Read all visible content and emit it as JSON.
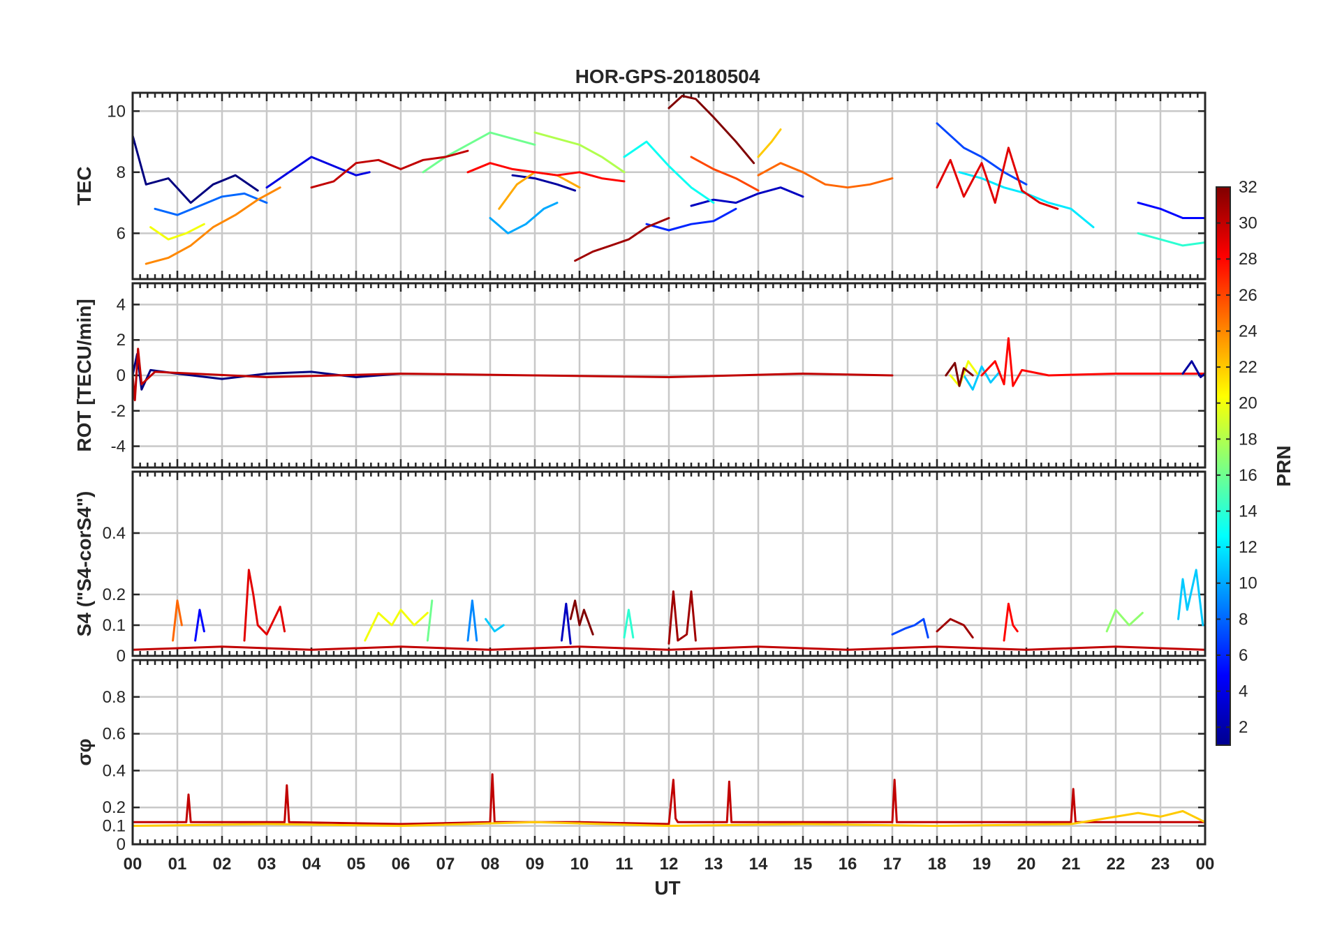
{
  "chart_data": {
    "type": "line",
    "title": "HOR-GPS-20180504",
    "xlabel": "UT",
    "x_tick_labels": [
      "00",
      "01",
      "02",
      "03",
      "04",
      "05",
      "06",
      "07",
      "08",
      "09",
      "10",
      "11",
      "12",
      "13",
      "14",
      "15",
      "16",
      "17",
      "18",
      "19",
      "20",
      "21",
      "22",
      "23",
      "00"
    ],
    "xlim": [
      0,
      24
    ],
    "colorbar": {
      "label": "PRN",
      "range": [
        1,
        32
      ],
      "tick_labels": [
        "2",
        "4",
        "6",
        "8",
        "10",
        "12",
        "14",
        "16",
        "18",
        "20",
        "22",
        "24",
        "26",
        "28",
        "30",
        "32"
      ],
      "colormap": "jet"
    },
    "panels": [
      {
        "id": "tec",
        "ylabel": "TEC",
        "ylim": [
          4.5,
          10.6
        ],
        "y_ticks": [
          6,
          8,
          10
        ],
        "y_tick_labels": [
          "6",
          "8",
          "10"
        ],
        "series": [
          {
            "prn": 1,
            "x": [
              0,
              0.3,
              0.8,
              1.3,
              1.8,
              2.3,
              2.8
            ],
            "y": [
              9.2,
              7.6,
              7.8,
              7.0,
              7.6,
              7.9,
              7.4
            ]
          },
          {
            "prn": 2,
            "x": [
              8.5,
              9.0,
              9.5,
              9.9
            ],
            "y": [
              7.9,
              7.8,
              7.6,
              7.4
            ]
          },
          {
            "prn": 3,
            "x": [
              12.5,
              13.0,
              13.5,
              14.0,
              14.5,
              15.0
            ],
            "y": [
              6.9,
              7.1,
              7.0,
              7.3,
              7.5,
              7.2
            ]
          },
          {
            "prn": 4,
            "x": [
              3.0,
              3.5,
              4.0,
              4.5,
              5.0,
              5.3
            ],
            "y": [
              7.5,
              8.0,
              8.5,
              8.2,
              7.9,
              8.0
            ]
          },
          {
            "prn": 5,
            "x": [
              22.5,
              23.0,
              23.5,
              24.0
            ],
            "y": [
              7.0,
              6.8,
              6.5,
              6.5
            ]
          },
          {
            "prn": 6,
            "x": [
              11.5,
              12.0,
              12.5,
              13.0,
              13.5
            ],
            "y": [
              6.3,
              6.1,
              6.3,
              6.4,
              6.8
            ]
          },
          {
            "prn": 7,
            "x": [
              18.0,
              18.3,
              18.6,
              19.0,
              19.5,
              20.0
            ],
            "y": [
              9.6,
              9.2,
              8.8,
              8.5,
              8.0,
              7.6
            ]
          },
          {
            "prn": 8,
            "x": [
              0.5,
              1.0,
              1.5,
              2.0,
              2.5,
              3.0
            ],
            "y": [
              6.8,
              6.6,
              6.9,
              7.2,
              7.3,
              7.0
            ]
          },
          {
            "prn": 10,
            "x": [
              8.0,
              8.4,
              8.8,
              9.2,
              9.5
            ],
            "y": [
              6.5,
              6.0,
              6.3,
              6.8,
              7.0
            ]
          },
          {
            "prn": 12,
            "x": [
              18.5,
              19.0,
              19.5,
              20.0,
              20.5,
              21.0,
              21.5
            ],
            "y": [
              8.0,
              7.8,
              7.5,
              7.3,
              7.0,
              6.8,
              6.2
            ]
          },
          {
            "prn": 13,
            "x": [
              11.0,
              11.5,
              12.0,
              12.5,
              13.0
            ],
            "y": [
              8.5,
              9.0,
              8.2,
              7.5,
              7.0
            ]
          },
          {
            "prn": 14,
            "x": [
              22.5,
              23.0,
              23.5,
              24.0
            ],
            "y": [
              6.0,
              5.8,
              5.6,
              5.7
            ]
          },
          {
            "prn": 16,
            "x": [
              6.5,
              7.0,
              7.5,
              8.0,
              8.5,
              9.0
            ],
            "y": [
              8.0,
              8.5,
              8.9,
              9.3,
              9.1,
              8.9
            ]
          },
          {
            "prn": 18,
            "x": [
              9.0,
              9.5,
              10.0,
              10.5,
              11.0
            ],
            "y": [
              9.3,
              9.1,
              8.9,
              8.5,
              8.0
            ]
          },
          {
            "prn": 20,
            "x": [
              0.4,
              0.8,
              1.2,
              1.6
            ],
            "y": [
              6.2,
              5.8,
              6.0,
              6.3
            ]
          },
          {
            "prn": 22,
            "x": [
              14.0,
              14.3,
              14.5
            ],
            "y": [
              8.5,
              9.0,
              9.4
            ]
          },
          {
            "prn": 23,
            "x": [
              8.2,
              8.6,
              9.0,
              9.5,
              10.0
            ],
            "y": [
              6.8,
              7.6,
              8.0,
              7.9,
              7.5
            ]
          },
          {
            "prn": 24,
            "x": [
              0.3,
              0.8,
              1.3,
              1.8,
              2.3,
              2.8,
              3.3
            ],
            "y": [
              5.0,
              5.2,
              5.6,
              6.2,
              6.6,
              7.1,
              7.5
            ]
          },
          {
            "prn": 25,
            "x": [
              14.0,
              14.5,
              15.0,
              15.5,
              16.0,
              16.5,
              17.0
            ],
            "y": [
              7.9,
              8.3,
              8.0,
              7.6,
              7.5,
              7.6,
              7.8
            ]
          },
          {
            "prn": 26,
            "x": [
              12.5,
              13.0,
              13.5,
              14.0
            ],
            "y": [
              8.5,
              8.1,
              7.8,
              7.4
            ]
          },
          {
            "prn": 28,
            "x": [
              7.5,
              8.0,
              8.5,
              9.0,
              9.5,
              10.0,
              10.5,
              11.0
            ],
            "y": [
              8.0,
              8.3,
              8.1,
              8.0,
              7.9,
              8.0,
              7.8,
              7.7
            ]
          },
          {
            "prn": 29,
            "x": [
              18.0,
              18.3,
              18.6,
              19.0,
              19.3,
              19.6,
              19.9,
              20.3,
              20.7
            ],
            "y": [
              7.5,
              8.4,
              7.2,
              8.3,
              7.0,
              8.8,
              7.4,
              7.0,
              6.8
            ]
          },
          {
            "prn": 30,
            "x": [
              4.0,
              4.5,
              5.0,
              5.5,
              6.0,
              6.5,
              7.0,
              7.5
            ],
            "y": [
              7.5,
              7.7,
              8.3,
              8.4,
              8.1,
              8.4,
              8.5,
              8.7
            ]
          },
          {
            "prn": 31,
            "x": [
              9.9,
              10.3,
              10.7,
              11.1,
              11.5,
              12.0
            ],
            "y": [
              5.1,
              5.4,
              5.6,
              5.8,
              6.2,
              6.5
            ]
          },
          {
            "prn": 32,
            "x": [
              12.0,
              12.3,
              12.6,
              13.0,
              13.5,
              13.9
            ],
            "y": [
              10.1,
              10.5,
              10.4,
              9.8,
              9.0,
              8.3
            ]
          }
        ]
      },
      {
        "id": "rot",
        "ylabel": "ROT [TECU/min]",
        "ylim": [
          -5.2,
          5.2
        ],
        "y_ticks": [
          -4,
          -2,
          0,
          2,
          4
        ],
        "y_tick_labels": [
          "-4",
          "-2",
          "0",
          "2",
          "4"
        ],
        "series": [
          {
            "prn": 1,
            "x": [
              0,
              0.1,
              0.2,
              0.4,
              1,
              2,
              3,
              4,
              5,
              6
            ],
            "y": [
              0,
              1.2,
              -0.8,
              0.3,
              0.1,
              -0.2,
              0.1,
              0.2,
              -0.1,
              0.1
            ]
          },
          {
            "prn": 30,
            "x": [
              0,
              0.05,
              0.12,
              0.2,
              0.5,
              3,
              6,
              9,
              12,
              15,
              17
            ],
            "y": [
              0,
              -1.4,
              1.5,
              -0.5,
              0.2,
              -0.1,
              0.1,
              0,
              -0.1,
              0.1,
              0
            ]
          },
          {
            "prn": 11,
            "x": [
              18.6,
              18.8,
              19.0,
              19.2,
              19.4
            ],
            "y": [
              0,
              -0.8,
              0.5,
              -0.4,
              0.2
            ]
          },
          {
            "prn": 20,
            "x": [
              18.3,
              18.5,
              18.7,
              18.9
            ],
            "y": [
              0,
              -0.6,
              0.8,
              0.1
            ]
          },
          {
            "prn": 32,
            "x": [
              18.2,
              18.4,
              18.5,
              18.6,
              18.8
            ],
            "y": [
              0,
              0.7,
              -0.6,
              0.4,
              0
            ]
          },
          {
            "prn": 28,
            "x": [
              19.0,
              19.3,
              19.5,
              19.6,
              19.7,
              19.9,
              20.5,
              22,
              24
            ],
            "y": [
              0,
              0.8,
              -0.5,
              2.1,
              -0.6,
              0.3,
              0,
              0.1,
              0.1
            ]
          },
          {
            "prn": 2,
            "x": [
              23.5,
              23.7,
              23.9,
              24.0
            ],
            "y": [
              0.1,
              0.8,
              -0.1,
              0.1
            ]
          }
        ]
      },
      {
        "id": "s4",
        "ylabel": "S4 (\"S4-corS4\")",
        "ylim": [
          0,
          0.6
        ],
        "y_ticks": [
          0,
          0.1,
          0.2,
          0.4
        ],
        "y_tick_labels": [
          "0",
          "0.1",
          "0.2",
          "0.4"
        ],
        "series": [
          {
            "prn": 25,
            "x": [
              0.9,
              1.0,
              1.1
            ],
            "y": [
              0.05,
              0.18,
              0.1
            ]
          },
          {
            "prn": 5,
            "x": [
              1.4,
              1.5,
              1.6
            ],
            "y": [
              0.05,
              0.15,
              0.08
            ]
          },
          {
            "prn": 29,
            "x": [
              2.5,
              2.6,
              2.7,
              2.8,
              3.0,
              3.3,
              3.4
            ],
            "y": [
              0.05,
              0.28,
              0.2,
              0.1,
              0.07,
              0.16,
              0.08
            ]
          },
          {
            "prn": 20,
            "x": [
              5.2,
              5.5,
              5.8,
              6.0,
              6.3,
              6.6
            ],
            "y": [
              0.05,
              0.14,
              0.1,
              0.15,
              0.1,
              0.14
            ]
          },
          {
            "prn": 16,
            "x": [
              6.6,
              6.7
            ],
            "y": [
              0.05,
              0.18
            ]
          },
          {
            "prn": 9,
            "x": [
              7.5,
              7.6,
              7.7
            ],
            "y": [
              0.05,
              0.18,
              0.05
            ]
          },
          {
            "prn": 11,
            "x": [
              7.9,
              8.1,
              8.3
            ],
            "y": [
              0.12,
              0.08,
              0.1
            ]
          },
          {
            "prn": 3,
            "x": [
              9.6,
              9.7,
              9.8
            ],
            "y": [
              0.05,
              0.17,
              0.04
            ]
          },
          {
            "prn": 32,
            "x": [
              9.8,
              9.9,
              10.0,
              10.1,
              10.3
            ],
            "y": [
              0.12,
              0.18,
              0.1,
              0.15,
              0.07
            ]
          },
          {
            "prn": 14,
            "x": [
              11.0,
              11.1,
              11.2
            ],
            "y": [
              0.06,
              0.15,
              0.06
            ]
          },
          {
            "prn": 31,
            "x": [
              12.0,
              12.1,
              12.2,
              12.4,
              12.5,
              12.6
            ],
            "y": [
              0.04,
              0.21,
              0.05,
              0.07,
              0.21,
              0.05
            ]
          },
          {
            "prn": 7,
            "x": [
              17.0,
              17.3,
              17.5,
              17.7,
              17.8
            ],
            "y": [
              0.07,
              0.09,
              0.1,
              0.12,
              0.06
            ]
          },
          {
            "prn": 31,
            "x": [
              18.0,
              18.3,
              18.6,
              18.8
            ],
            "y": [
              0.08,
              0.12,
              0.1,
              0.06
            ]
          },
          {
            "prn": 28,
            "x": [
              19.5,
              19.6,
              19.7,
              19.8
            ],
            "y": [
              0.05,
              0.17,
              0.1,
              0.08
            ]
          },
          {
            "prn": 17,
            "x": [
              21.8,
              22.0,
              22.3,
              22.6
            ],
            "y": [
              0.08,
              0.15,
              0.1,
              0.14
            ]
          },
          {
            "prn": 11,
            "x": [
              23.4,
              23.5,
              23.6,
              23.8,
              23.95
            ],
            "y": [
              0.12,
              0.25,
              0.15,
              0.28,
              0.1
            ]
          },
          {
            "prn": 30,
            "x": [
              0,
              2,
              4,
              6,
              8,
              10,
              12,
              14,
              16,
              18,
              20,
              22,
              24
            ],
            "y": [
              0.02,
              0.03,
              0.02,
              0.03,
              0.02,
              0.03,
              0.02,
              0.03,
              0.02,
              0.03,
              0.02,
              0.03,
              0.02
            ]
          }
        ]
      },
      {
        "id": "sigma_phi",
        "ylabel": "σφ",
        "ylim": [
          0,
          1.0
        ],
        "y_ticks": [
          0,
          0.1,
          0.2,
          0.4,
          0.6,
          0.8
        ],
        "y_tick_labels": [
          "0",
          "0.1",
          "0.2",
          "0.4",
          "0.6",
          "0.8"
        ],
        "series": [
          {
            "prn": 30,
            "x": [
              0,
              1.2,
              1.25,
              1.3,
              3.4,
              3.45,
              3.5,
              6,
              8,
              8.05,
              8.1,
              10,
              12,
              12.1,
              12.15,
              12.2,
              13.3,
              13.35,
              13.4,
              16,
              17,
              17.05,
              17.1,
              21,
              21.05,
              21.1,
              24
            ],
            "y": [
              0.12,
              0.12,
              0.27,
              0.12,
              0.12,
              0.32,
              0.12,
              0.11,
              0.12,
              0.38,
              0.12,
              0.12,
              0.11,
              0.35,
              0.14,
              0.12,
              0.12,
              0.34,
              0.12,
              0.12,
              0.12,
              0.35,
              0.12,
              0.12,
              0.3,
              0.12,
              0.12
            ]
          },
          {
            "prn": 22,
            "x": [
              0,
              3,
              6,
              9,
              12,
              15,
              18,
              21,
              22.5,
              23,
              23.5,
              24
            ],
            "y": [
              0.1,
              0.11,
              0.1,
              0.12,
              0.1,
              0.11,
              0.1,
              0.11,
              0.17,
              0.15,
              0.18,
              0.12
            ]
          }
        ]
      }
    ]
  }
}
